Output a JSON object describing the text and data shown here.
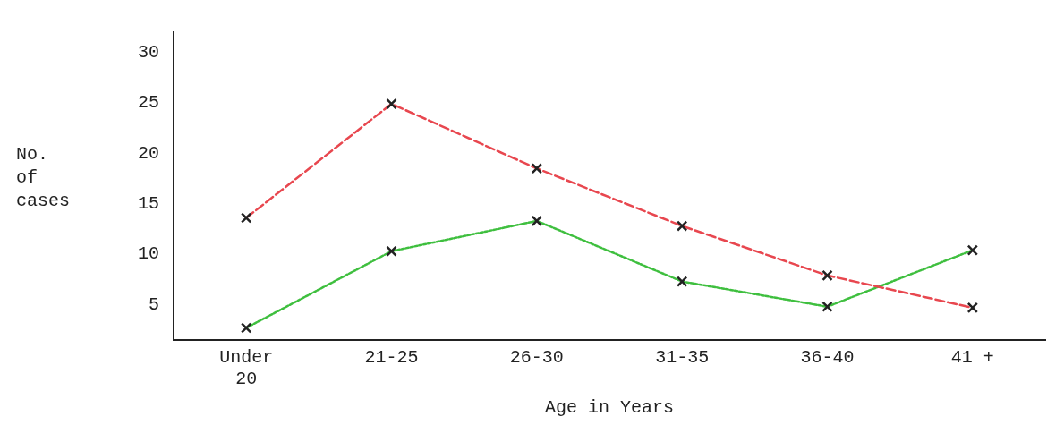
{
  "chart_data": {
    "type": "line",
    "xlabel": "Age in Years",
    "ylabel": "No.\nof\ncases",
    "categories": [
      "Under\n20",
      "21-25",
      "26-30",
      "31-35",
      "36-40",
      "41 +"
    ],
    "series": [
      {
        "color": "#e8474f",
        "line_style": "dashed",
        "values": [
          13.6,
          24.9,
          18.5,
          12.8,
          7.9,
          4.7
        ]
      },
      {
        "color": "#3fbf3f",
        "line_style": "dotted",
        "values": [
          2.7,
          10.3,
          13.3,
          7.3,
          4.8,
          10.4
        ]
      }
    ],
    "ylim": [
      1.5,
      32
    ],
    "yticks": [
      5,
      10,
      15,
      20,
      25,
      30
    ],
    "grid": false,
    "legend": false,
    "marker": "cross"
  }
}
